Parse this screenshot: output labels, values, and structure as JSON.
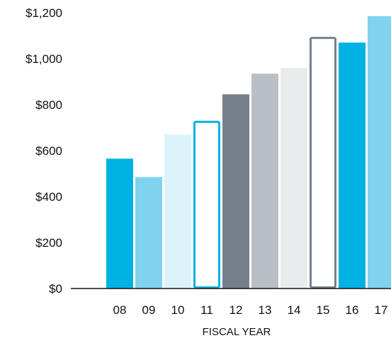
{
  "chart_data": {
    "type": "bar",
    "title": "",
    "xlabel": "FISCAL YEAR",
    "ylabel": "",
    "categories": [
      "08",
      "09",
      "10",
      "11",
      "12",
      "13",
      "14",
      "15",
      "16",
      "17"
    ],
    "values": [
      565,
      485,
      670,
      730,
      845,
      935,
      960,
      1095,
      1070,
      1185
    ],
    "ylim": [
      0,
      1200
    ],
    "yticks": [
      0,
      200,
      400,
      600,
      800,
      1000,
      1200
    ],
    "ytick_labels": [
      "$0",
      "$200",
      "$400",
      "$600",
      "$800",
      "$1,000",
      "$1,200"
    ],
    "grid": false,
    "legend": "none",
    "bar_styles": [
      {
        "fill": "#00b2e3",
        "stroke": "none"
      },
      {
        "fill": "#7fd3ef",
        "stroke": "none"
      },
      {
        "fill": "#dcf3fa",
        "stroke": "none"
      },
      {
        "fill": "#ffffff",
        "stroke": "#00b2e3"
      },
      {
        "fill": "#75808b",
        "stroke": "none"
      },
      {
        "fill": "#babfc5",
        "stroke": "none"
      },
      {
        "fill": "#eaebed",
        "stroke": "none"
      },
      {
        "fill": "#ffffff",
        "stroke": "#75808b"
      },
      {
        "fill": "#00b2e3",
        "stroke": "none"
      },
      {
        "fill": "#7fd3ef",
        "stroke": "none"
      }
    ],
    "axis_color": "#111111"
  }
}
